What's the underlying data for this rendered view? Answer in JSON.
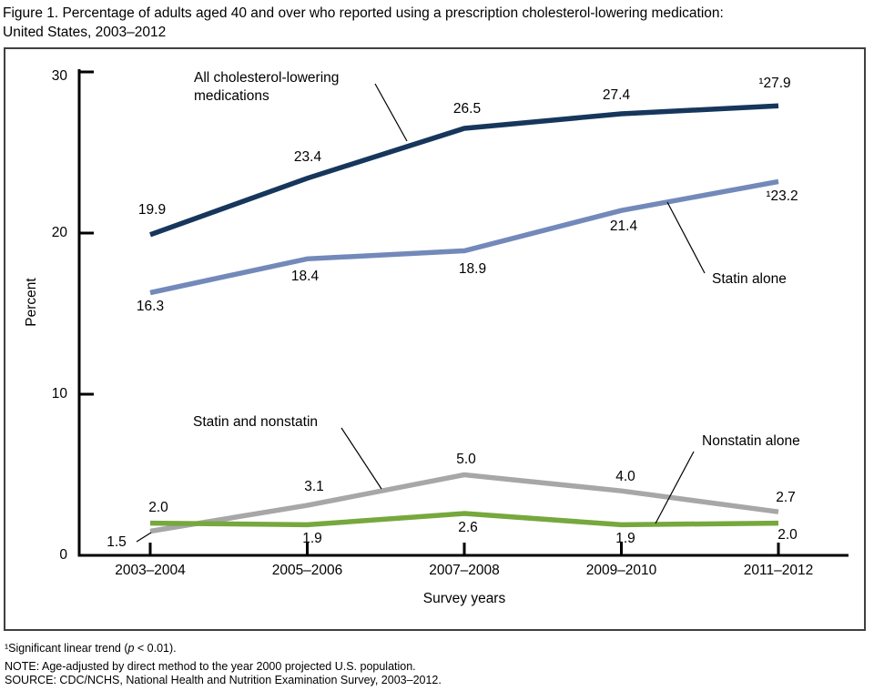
{
  "figure": {
    "title_line1": "Figure 1. Percentage of adults aged 40 and over who reported using a prescription cholesterol-lowering medication:",
    "title_line2": "United States, 2003–2012"
  },
  "chart_data": {
    "type": "line",
    "title": "Percentage of adults aged 40 and over who reported using a prescription cholesterol-lowering medication: United States, 2003–2012",
    "categories": [
      "2003–2004",
      "2005–2006",
      "2007–2008",
      "2009–2010",
      "2011–2012"
    ],
    "series": [
      {
        "name": "All cholesterol-lowering medications",
        "color": "#16365c",
        "values": [
          19.9,
          23.4,
          26.5,
          27.4,
          27.9
        ],
        "labels": [
          "19.9",
          "23.4",
          "26.5",
          "27.4",
          "¹27.9"
        ]
      },
      {
        "name": "Statin alone",
        "color": "#7389ba",
        "values": [
          16.3,
          18.4,
          18.9,
          21.4,
          23.2
        ],
        "labels": [
          "16.3",
          "18.4",
          "18.9",
          "21.4",
          "¹23.2"
        ]
      },
      {
        "name": "Statin and nonstatin",
        "color": "#a7a7a7",
        "values": [
          1.5,
          3.1,
          5.0,
          4.0,
          2.7
        ],
        "labels": [
          "1.5",
          "3.1",
          "5.0",
          "4.0",
          "2.7"
        ]
      },
      {
        "name": "Nonstatin alone",
        "color": "#76a83e",
        "values": [
          2.0,
          1.9,
          2.6,
          1.9,
          2.0
        ],
        "labels": [
          "2.0",
          "1.9",
          "2.6",
          "1.9",
          "2.0"
        ]
      }
    ],
    "xlabel": "Survey years",
    "ylabel": "Percent",
    "ylim": [
      0,
      30
    ],
    "yticks": [
      0,
      10,
      20,
      30
    ],
    "grid": false,
    "legend_position": "inline annotations with callout lines"
  },
  "footnotes": {
    "line1_pre": "¹Significant linear trend (",
    "line1_p": "p",
    "line1_post": " < 0.01).",
    "note": "NOTE: Age-adjusted by direct method to the year 2000 projected U.S. population.",
    "source": "SOURCE: CDC/NCHS, National Health and Nutrition Examination Survey, 2003–2012."
  }
}
